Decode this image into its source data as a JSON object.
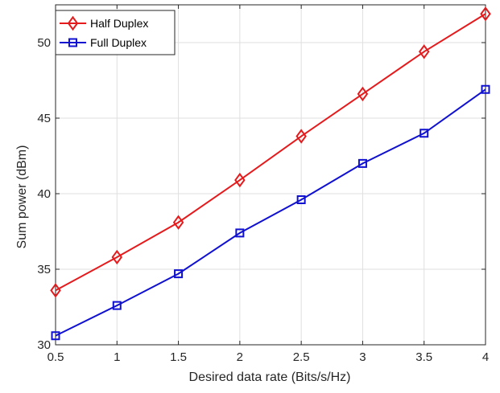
{
  "chart_data": {
    "type": "line",
    "title": "",
    "xlabel": "Desired data rate (Bits/s/Hz)",
    "ylabel": "Sum power (dBm)",
    "xlim": [
      0.5,
      4
    ],
    "ylim": [
      30,
      52.5
    ],
    "grid": true,
    "legend_position": "top-left",
    "x_ticks": [
      0.5,
      1,
      1.5,
      2,
      2.5,
      3,
      3.5,
      4
    ],
    "x_tick_labels": [
      "0.5",
      "1",
      "1.5",
      "2",
      "2.5",
      "3",
      "3.5",
      "4"
    ],
    "y_ticks": [
      30,
      35,
      40,
      45,
      50
    ],
    "y_tick_labels": [
      "30",
      "35",
      "40",
      "45",
      "50"
    ],
    "x": [
      0.5,
      1,
      1.5,
      2,
      2.5,
      3,
      3.5,
      4
    ],
    "series": [
      {
        "name": "Half Duplex",
        "color": "#e41a1c",
        "marker": "diamond",
        "values": [
          33.6,
          35.8,
          38.1,
          40.9,
          43.8,
          46.6,
          49.4,
          51.9
        ]
      },
      {
        "name": "Full Duplex",
        "color": "#1010d0",
        "marker": "square",
        "values": [
          30.6,
          32.6,
          34.7,
          37.4,
          39.6,
          42.0,
          44.0,
          46.9
        ]
      }
    ]
  }
}
